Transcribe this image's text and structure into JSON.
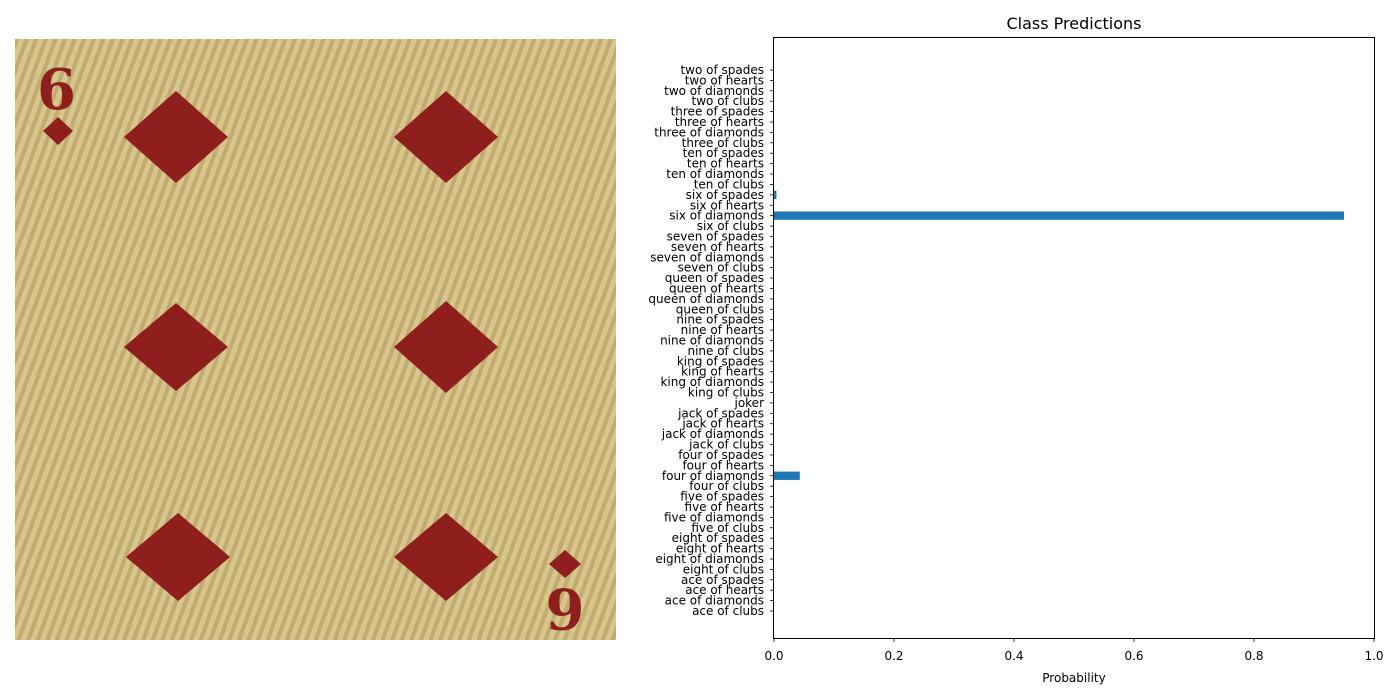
{
  "image_panel": {
    "corner_rank": "6",
    "suit": "diamond",
    "colors": {
      "background": "#d9c48c",
      "stripe": "#a8925a",
      "pip": "#8e1f1c"
    }
  },
  "chart_data": {
    "type": "bar",
    "orientation": "horizontal",
    "title": "Class Predictions",
    "xlabel": "Probability",
    "ylabel": "",
    "xlim": [
      0,
      1
    ],
    "xticks": [
      "0.0",
      "0.2",
      "0.4",
      "0.6",
      "0.8",
      "1.0"
    ],
    "bar_color": "#1f77b4",
    "grid": false,
    "categories": [
      "two of spades",
      "two of hearts",
      "two of diamonds",
      "two of clubs",
      "three of spades",
      "three of hearts",
      "three of diamonds",
      "three of clubs",
      "ten of spades",
      "ten of hearts",
      "ten of diamonds",
      "ten of clubs",
      "six of spades",
      "six of hearts",
      "six of diamonds",
      "six of clubs",
      "seven of spades",
      "seven of hearts",
      "seven of diamonds",
      "seven of clubs",
      "queen of spades",
      "queen of hearts",
      "queen of diamonds",
      "queen of clubs",
      "nine of spades",
      "nine of hearts",
      "nine of diamonds",
      "nine of clubs",
      "king of spades",
      "king of hearts",
      "king of diamonds",
      "king of clubs",
      "joker",
      "jack of spades",
      "jack of hearts",
      "jack of diamonds",
      "jack of clubs",
      "four of spades",
      "four of hearts",
      "four of diamonds",
      "four of clubs",
      "five of spades",
      "five of hearts",
      "five of diamonds",
      "five of clubs",
      "eight of spades",
      "eight of hearts",
      "eight of diamonds",
      "eight of clubs",
      "ace of spades",
      "ace of hearts",
      "ace of diamonds",
      "ace of clubs"
    ],
    "values": [
      0,
      0,
      0,
      0,
      0,
      0,
      0,
      0,
      0,
      0,
      0,
      0,
      0.004,
      0,
      0.95,
      0,
      0,
      0,
      0,
      0,
      0,
      0,
      0,
      0,
      0,
      0,
      0,
      0,
      0,
      0,
      0,
      0,
      0,
      0,
      0,
      0,
      0,
      0,
      0,
      0.043,
      0,
      0,
      0,
      0,
      0,
      0,
      0,
      0,
      0,
      0,
      0,
      0,
      0
    ]
  }
}
